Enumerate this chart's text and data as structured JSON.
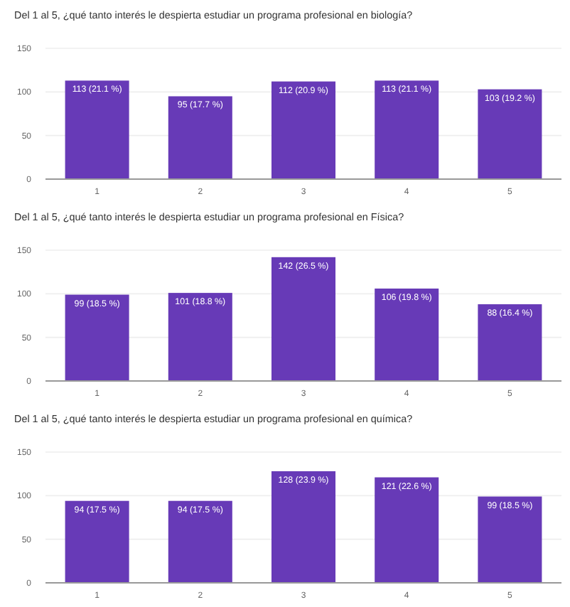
{
  "chart_data": [
    {
      "type": "bar",
      "title": "Del 1 al 5, ¿qué tanto interés le despierta estudiar un programa profesional en biología?",
      "categories": [
        "1",
        "2",
        "3",
        "4",
        "5"
      ],
      "values": [
        113,
        95,
        112,
        113,
        103
      ],
      "value_labels": [
        "113 (21.1 %)",
        "95 (17.7 %)",
        "112 (20.9 %)",
        "113 (21.1 %)",
        "103 (19.2 %)"
      ],
      "color": "#673ab7",
      "ylim": [
        0,
        150
      ],
      "yticks": [
        0,
        50,
        100,
        150
      ],
      "grid": "y"
    },
    {
      "type": "bar",
      "title": "Del 1 al 5, ¿qué tanto interés le despierta estudiar un programa profesional en Física?",
      "categories": [
        "1",
        "2",
        "3",
        "4",
        "5"
      ],
      "values": [
        99,
        101,
        142,
        106,
        88
      ],
      "value_labels": [
        "99 (18.5 %)",
        "101 (18.8 %)",
        "142 (26.5 %)",
        "106 (19.8 %)",
        "88 (16.4 %)"
      ],
      "color": "#673ab7",
      "ylim": [
        0,
        150
      ],
      "yticks": [
        0,
        50,
        100,
        150
      ],
      "grid": "y"
    },
    {
      "type": "bar",
      "title": "Del 1 al 5, ¿qué tanto interés le despierta estudiar un programa profesional en química?",
      "categories": [
        "1",
        "2",
        "3",
        "4",
        "5"
      ],
      "values": [
        94,
        94,
        128,
        121,
        99
      ],
      "value_labels": [
        "94 (17.5 %)",
        "94 (17.5 %)",
        "128 (23.9 %)",
        "121 (22.6 %)",
        "99 (18.5 %)"
      ],
      "color": "#673ab7",
      "ylim": [
        0,
        150
      ],
      "yticks": [
        0,
        50,
        100,
        150
      ],
      "grid": "y"
    }
  ]
}
